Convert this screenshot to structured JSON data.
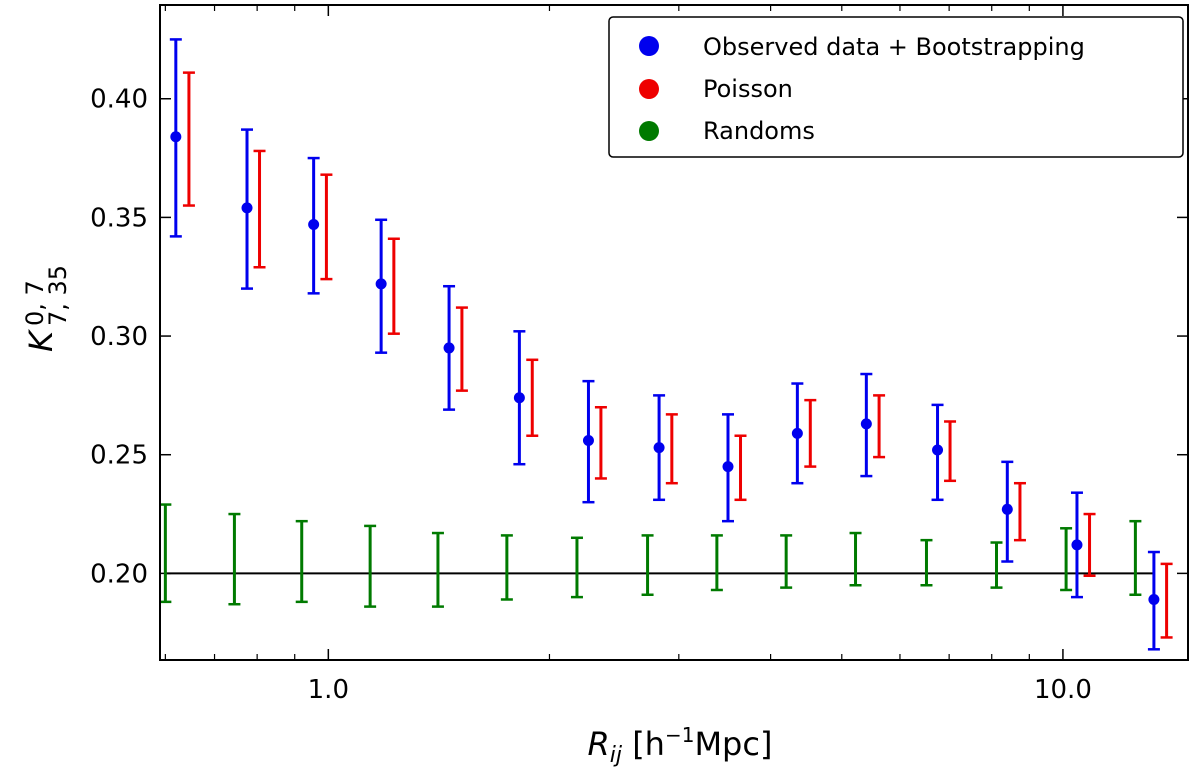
{
  "chart_data": {
    "type": "scatter",
    "xscale": "log",
    "xlim": [
      0.59,
      14.8
    ],
    "ylim": [
      0.1635,
      0.4395
    ],
    "xticks": [
      {
        "value": 1.0,
        "label": "1.0"
      },
      {
        "value": 10.0,
        "label": "10.0"
      }
    ],
    "yticks": [
      {
        "value": 0.2,
        "label": "0.20"
      },
      {
        "value": 0.25,
        "label": "0.25"
      },
      {
        "value": 0.3,
        "label": "0.30"
      },
      {
        "value": 0.35,
        "label": "0.35"
      },
      {
        "value": 0.4,
        "label": "0.40"
      }
    ],
    "xlabel": {
      "main": "R",
      "sub": "ij",
      "rest": " [h",
      "sup": "−1",
      "unit": "Mpc]"
    },
    "ylabel": {
      "main": "K",
      "sub": "7, 35",
      "sup": "0, 7"
    },
    "reference_line": {
      "y": 0.2,
      "x_from": 0.6,
      "x_to": 13.3,
      "color": "#000000"
    },
    "legend": {
      "position": "top-right",
      "entries": [
        {
          "label": "Observed data + Bootstrapping",
          "color": "#0000ee"
        },
        {
          "label": "Poisson",
          "color": "#ee0000"
        },
        {
          "label": "Randoms",
          "color": "#007a00"
        }
      ]
    },
    "series": [
      {
        "name": "Observed data + Bootstrapping",
        "color": "#0000ee",
        "marker": true,
        "x": [
          0.62,
          0.775,
          0.955,
          1.18,
          1.46,
          1.82,
          2.26,
          2.82,
          3.5,
          4.35,
          5.4,
          6.75,
          8.4,
          10.45,
          13.3
        ],
        "y": [
          0.384,
          0.354,
          0.347,
          0.322,
          0.295,
          0.274,
          0.256,
          0.253,
          0.245,
          0.259,
          0.263,
          0.252,
          0.227,
          0.212,
          0.189
        ],
        "ylow": [
          0.342,
          0.32,
          0.318,
          0.293,
          0.269,
          0.246,
          0.23,
          0.231,
          0.222,
          0.238,
          0.241,
          0.231,
          0.205,
          0.19,
          0.168
        ],
        "yhigh": [
          0.425,
          0.387,
          0.375,
          0.349,
          0.321,
          0.302,
          0.281,
          0.275,
          0.267,
          0.28,
          0.284,
          0.271,
          0.247,
          0.234,
          0.209
        ]
      },
      {
        "name": "Poisson",
        "color": "#ee0000",
        "marker": false,
        "x": [
          0.646,
          0.806,
          0.994,
          1.228,
          1.52,
          1.895,
          2.35,
          2.935,
          3.64,
          4.53,
          5.62,
          7.02,
          8.74,
          10.87,
          13.84
        ],
        "ylow": [
          0.355,
          0.329,
          0.324,
          0.301,
          0.277,
          0.258,
          0.24,
          0.238,
          0.231,
          0.245,
          0.249,
          0.239,
          0.214,
          0.199,
          0.173
        ],
        "yhigh": [
          0.411,
          0.378,
          0.368,
          0.341,
          0.312,
          0.29,
          0.27,
          0.267,
          0.258,
          0.273,
          0.275,
          0.264,
          0.238,
          0.225,
          0.204
        ]
      },
      {
        "name": "Randoms",
        "color": "#007a00",
        "marker": false,
        "x": [
          0.6,
          0.745,
          0.92,
          1.14,
          1.41,
          1.75,
          2.18,
          2.72,
          3.38,
          4.2,
          5.22,
          6.52,
          8.12,
          10.1,
          12.55
        ],
        "ylow": [
          0.188,
          0.187,
          0.188,
          0.186,
          0.186,
          0.189,
          0.19,
          0.191,
          0.193,
          0.194,
          0.195,
          0.195,
          0.194,
          0.193,
          0.191
        ],
        "yhigh": [
          0.229,
          0.225,
          0.222,
          0.22,
          0.217,
          0.216,
          0.215,
          0.216,
          0.216,
          0.216,
          0.217,
          0.214,
          0.213,
          0.219,
          0.222
        ]
      }
    ]
  }
}
